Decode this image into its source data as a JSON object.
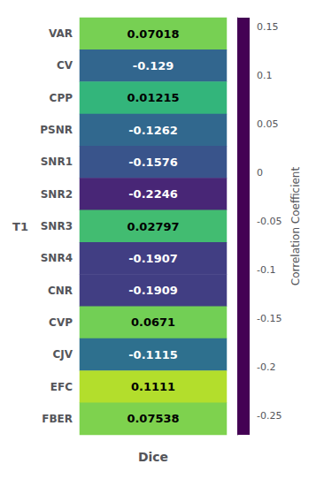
{
  "chart_data": {
    "type": "heatmap",
    "xlabel": "Dice",
    "ylabel": "T1",
    "categories": [
      "VAR",
      "CV",
      "CPP",
      "PSNR",
      "SNR1",
      "SNR2",
      "SNR3",
      "SNR4",
      "CNR",
      "CVP",
      "CJV",
      "EFC",
      "FBER"
    ],
    "values": [
      0.07018,
      -0.129,
      0.01215,
      -0.1262,
      -0.1576,
      -0.2246,
      0.02797,
      -0.1907,
      -0.1909,
      0.0671,
      -0.1115,
      0.1111,
      0.07538
    ],
    "data_labels": true,
    "tick_labels": "y",
    "grid": false,
    "colorbar_label": "Correlation Coefficient",
    "colorbar_range": [
      -0.27,
      0.16
    ],
    "colorbar_ticks": [
      0.15,
      0.1,
      0.05,
      0,
      -0.05,
      -0.1,
      -0.15,
      -0.2,
      -0.25
    ]
  }
}
